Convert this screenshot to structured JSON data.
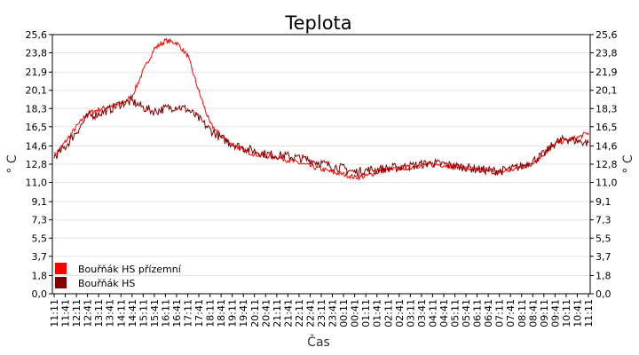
{
  "chart_data": {
    "type": "line",
    "title": "Teplota",
    "xlabel": "Čas",
    "ylabel": "° C",
    "ylim": [
      0.0,
      25.6
    ],
    "yticks": [
      "0,0",
      "1,8",
      "3,7",
      "5,5",
      "7,3",
      "9,1",
      "11,0",
      "12,8",
      "14,6",
      "16,5",
      "18,3",
      "20,1",
      "21,9",
      "23,8",
      "25,6"
    ],
    "categories": [
      "11:11",
      "11:41",
      "12:11",
      "12:41",
      "13:11",
      "13:41",
      "14:11",
      "14:41",
      "15:11",
      "15:41",
      "16:11",
      "16:41",
      "17:11",
      "17:41",
      "18:11",
      "18:41",
      "19:11",
      "19:41",
      "20:11",
      "20:41",
      "21:11",
      "21:41",
      "22:11",
      "22:41",
      "23:11",
      "23:41",
      "00:11",
      "00:41",
      "01:11",
      "01:41",
      "02:11",
      "02:41",
      "03:11",
      "03:41",
      "04:11",
      "04:41",
      "05:11",
      "05:41",
      "06:11",
      "06:41",
      "07:11",
      "07:41",
      "08:11",
      "08:41",
      "09:11",
      "09:41",
      "10:11",
      "10:41",
      "11:11"
    ],
    "grid": true,
    "legend_position": "bottom-left",
    "series": [
      {
        "name": "Bouřňák HS přízemní",
        "color": "#ff0000",
        "values": [
          13.6,
          15.0,
          16.5,
          17.8,
          18.2,
          18.5,
          18.7,
          19.5,
          22.0,
          24.2,
          25.0,
          24.8,
          23.5,
          20.0,
          16.8,
          15.6,
          14.8,
          14.2,
          13.8,
          13.6,
          13.5,
          13.2,
          12.9,
          12.6,
          12.3,
          12.0,
          11.8,
          11.5,
          11.6,
          12.0,
          12.2,
          12.4,
          12.5,
          12.7,
          12.8,
          12.7,
          12.6,
          12.4,
          12.2,
          12.1,
          12.0,
          12.2,
          12.5,
          13.0,
          13.8,
          14.8,
          15.2,
          15.4,
          15.9
        ]
      },
      {
        "name": "Bouřňák HS",
        "color": "#800000",
        "values": [
          13.5,
          14.5,
          16.0,
          17.5,
          17.8,
          18.2,
          18.8,
          19.0,
          18.4,
          18.0,
          18.3,
          18.5,
          18.2,
          17.3,
          16.2,
          15.4,
          14.8,
          14.4,
          14.1,
          13.8,
          13.7,
          13.6,
          13.4,
          13.2,
          12.9,
          12.6,
          12.4,
          12.0,
          12.2,
          12.3,
          12.4,
          12.5,
          12.6,
          12.8,
          12.9,
          12.8,
          12.6,
          12.5,
          12.3,
          12.2,
          12.1,
          12.3,
          12.6,
          13.1,
          13.8,
          14.9,
          15.3,
          15.1,
          14.9
        ]
      }
    ]
  }
}
